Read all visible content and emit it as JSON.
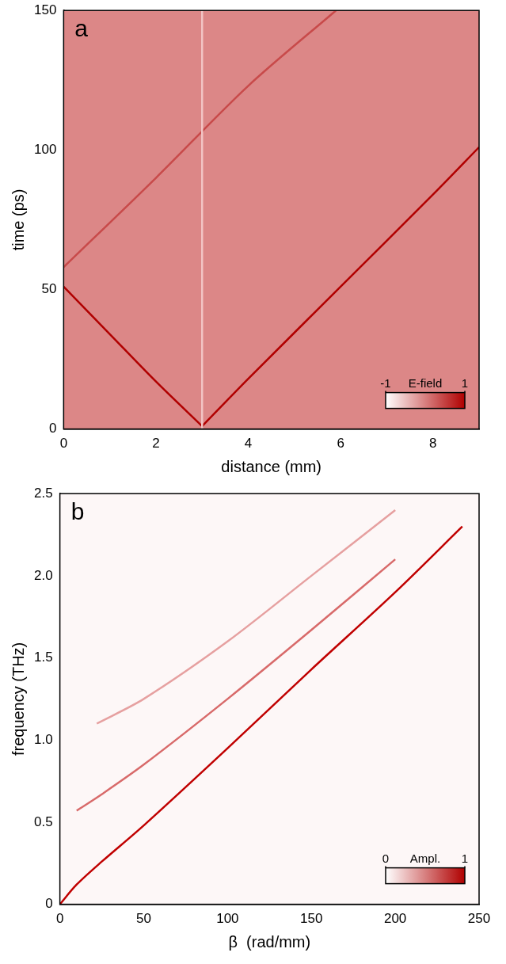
{
  "chart_data": [
    {
      "type": "line",
      "title": "a",
      "x_label": "distance (mm)",
      "y_label": "time (ps)",
      "xlim": [
        0,
        9
      ],
      "xticks": [
        0,
        2,
        4,
        6,
        8
      ],
      "ylim": [
        0,
        150
      ],
      "yticks": [
        0,
        50,
        100,
        150
      ],
      "grid": false,
      "colorbar": {
        "label": "E-field",
        "range": [
          -1,
          1
        ],
        "ticks": [
          -1,
          1
        ]
      },
      "series": [
        {
          "color": "#f2c4c4",
          "line_style": "solid",
          "x": [
            3,
            3
          ],
          "values": [
            0,
            150
          ]
        },
        {
          "color": "#b00000",
          "line_style": "solid",
          "x": [
            3,
            2,
            1,
            0
          ],
          "values": [
            1,
            17,
            34,
            51
          ]
        },
        {
          "color": "#b00000",
          "line_style": "solid",
          "x": [
            3,
            4,
            6,
            8,
            9
          ],
          "values": [
            1,
            18,
            51,
            84,
            101
          ]
        },
        {
          "color": "#c84a4a",
          "line_style": "solid",
          "x": [
            0,
            2,
            4,
            5.9
          ],
          "values": [
            58,
            90,
            123,
            150
          ]
        }
      ]
    },
    {
      "type": "line",
      "title": "b",
      "x_label": "β  (rad/mm)",
      "y_label": "frequency (THz)",
      "xlim": [
        0,
        250
      ],
      "xticks": [
        0,
        50,
        100,
        150,
        200,
        250
      ],
      "ylim": [
        0,
        2.5
      ],
      "yticks": [
        0,
        0.5,
        {
          "value": 1,
          "label": "1.0"
        },
        1.5,
        {
          "value": 2,
          "label": "2.0"
        },
        2.5
      ],
      "grid": false,
      "colorbar": {
        "label": "Ampl.",
        "range": [
          0,
          1
        ],
        "ticks": [
          0,
          1
        ]
      },
      "series": [
        {
          "color": "#c00000",
          "line_style": "solid",
          "x": [
            0,
            10,
            25,
            50,
            100,
            150,
            200,
            240
          ],
          "values": [
            0,
            0.12,
            0.26,
            0.48,
            0.95,
            1.43,
            1.9,
            2.3
          ]
        },
        {
          "color": "#d86a6a",
          "line_style": "solid",
          "x": [
            10,
            25,
            50,
            100,
            150,
            200
          ],
          "values": [
            0.57,
            0.67,
            0.85,
            1.25,
            1.67,
            2.1
          ]
        },
        {
          "color": "#e6a0a0",
          "line_style": "solid",
          "x": [
            22,
            50,
            100,
            150,
            200
          ],
          "values": [
            1.1,
            1.25,
            1.6,
            2.0,
            2.4
          ]
        }
      ]
    }
  ]
}
